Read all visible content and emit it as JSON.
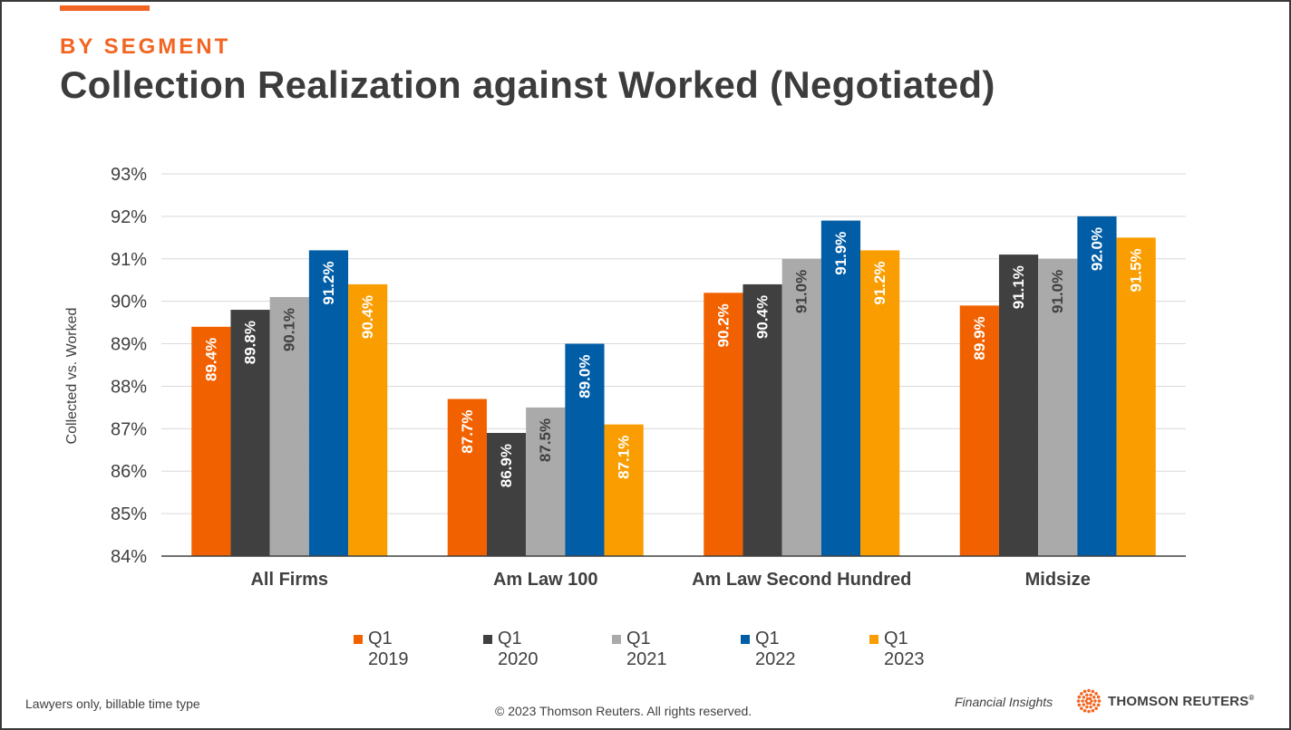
{
  "header": {
    "eyebrow": "BY SEGMENT",
    "title": "Collection Realization against Worked (Negotiated)"
  },
  "chart_data": {
    "type": "bar",
    "ylabel": "Collected vs. Worked",
    "ylim": [
      84,
      93
    ],
    "yticks": [
      "84%",
      "85%",
      "86%",
      "87%",
      "88%",
      "89%",
      "90%",
      "91%",
      "92%",
      "93%"
    ],
    "categories": [
      "All Firms",
      "Am Law 100",
      "Am Law Second Hundred",
      "Midsize"
    ],
    "grid": true,
    "legend_position": "bottom",
    "series": [
      {
        "name": "Q1\n2019",
        "color": "#f26100",
        "values": [
          89.4,
          87.7,
          90.2,
          89.9
        ],
        "labels": [
          "89.4%",
          "87.7%",
          "90.2%",
          "89.9%"
        ]
      },
      {
        "name": "Q1\n2020",
        "color": "#404040",
        "values": [
          89.8,
          86.9,
          90.4,
          91.1
        ],
        "labels": [
          "89.8%",
          "86.9%",
          "90.4%",
          "91.1%"
        ]
      },
      {
        "name": "Q1\n2021",
        "color": "#aaaaaa",
        "values": [
          90.1,
          87.5,
          91.0,
          91.0
        ],
        "labels": [
          "90.1%",
          "87.5%",
          "91.0%",
          "91.0%"
        ]
      },
      {
        "name": "Q1\n2022",
        "color": "#005da6",
        "values": [
          91.2,
          89.0,
          91.9,
          92.0
        ],
        "labels": [
          "91.2%",
          "89.0%",
          "91.9%",
          "92.0%"
        ]
      },
      {
        "name": "Q1\n2023",
        "color": "#fa9d00",
        "values": [
          90.4,
          87.1,
          91.2,
          91.5
        ],
        "labels": [
          "90.4%",
          "87.1%",
          "91.2%",
          "91.5%"
        ]
      }
    ]
  },
  "footer": {
    "note": "Lawyers only, billable time type",
    "copyright": "© 2023 Thomson Reuters. All rights reserved.",
    "insights": "Financial Insights",
    "brand": "THOMSON REUTERS",
    "brand_mark": "®",
    "brand_color": "#f26522"
  }
}
